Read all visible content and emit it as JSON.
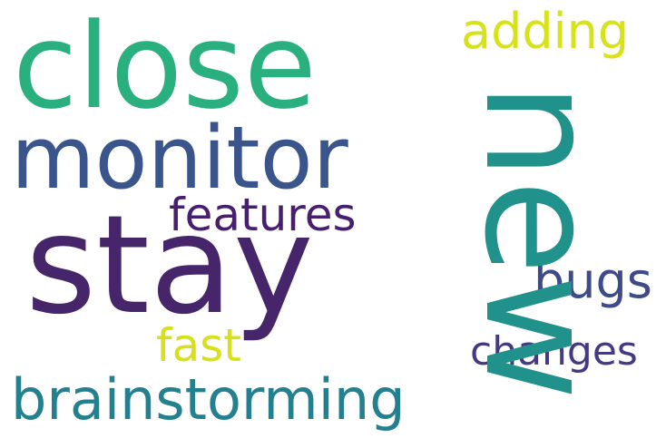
{
  "cloud": {
    "words": {
      "close": {
        "text": "close",
        "color": "#2AB07F"
      },
      "monitor": {
        "text": "monitor",
        "color": "#3A548C"
      },
      "new": {
        "text": "new",
        "color": "#21918C"
      },
      "adding": {
        "text": "adding",
        "color": "#D8E219"
      },
      "features": {
        "text": "features",
        "color": "#481F70"
      },
      "stay": {
        "text": "stay",
        "color": "#46256B"
      },
      "bugs": {
        "text": "bugs",
        "color": "#3E4A89"
      },
      "fast": {
        "text": "fast",
        "color": "#D7E11B"
      },
      "changes": {
        "text": "changes",
        "color": "#443A83"
      },
      "brainstorming": {
        "text": "brainstorming",
        "color": "#23808E"
      }
    }
  }
}
